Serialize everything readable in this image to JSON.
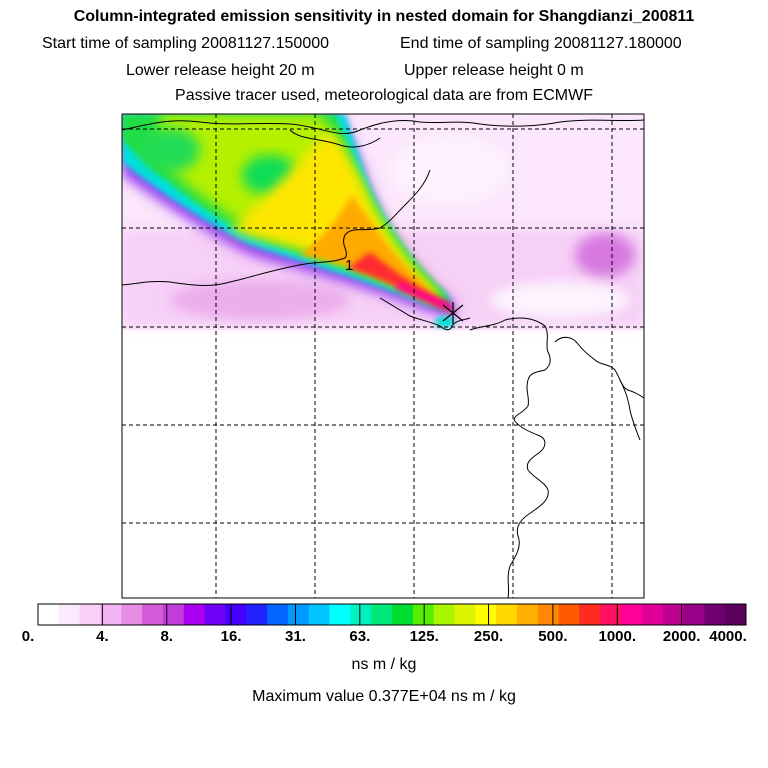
{
  "header": {
    "title": "Column-integrated emission sensitivity in nested domain for Shangdianzi_200811",
    "start_label": "Start time of sampling 20081127.150000",
    "end_label": "End time of sampling 20081127.180000",
    "lower_label": "Lower release height   20 m",
    "upper_label": "Upper release height    0 m",
    "subtitle": "Passive tracer used, meteorological data are from ECMWF"
  },
  "map": {
    "marker_label": "1",
    "receptor_symbol": "×"
  },
  "chart_data": {
    "type": "heatmap",
    "title": "Column-integrated emission sensitivity in nested domain for Shangdianzi_200811",
    "colorbar": {
      "tick_labels": [
        "0.",
        "4.",
        "8.",
        "16.",
        "31.",
        "63.",
        "125.",
        "250.",
        "500.",
        "1000.",
        "2000.",
        "4000."
      ],
      "tick_values": [
        0,
        4,
        8,
        16,
        31,
        63,
        125,
        250,
        500,
        1000,
        2000,
        4000
      ],
      "colors": [
        "#ffffff",
        "#fde9fd",
        "#f8d0f8",
        "#f2b4f2",
        "#e68ee6",
        "#d55bd8",
        "#c23cdc",
        "#a900f0",
        "#7000f8",
        "#4400ff",
        "#2222ff",
        "#0066ff",
        "#0099ff",
        "#00c4ff",
        "#00ffff",
        "#00f0c0",
        "#00e87a",
        "#00dd33",
        "#55ee00",
        "#aaf500",
        "#ddf400",
        "#ffff00",
        "#ffd800",
        "#ffb000",
        "#ff8800",
        "#ff5a00",
        "#ff2a20",
        "#ff1060",
        "#ff0099",
        "#e00099",
        "#c00090",
        "#990088",
        "#700070",
        "#5a005a"
      ],
      "units": "ns m / kg"
    },
    "max_value_text": "Maximum value  0.377E+04 ns m / kg",
    "max_value": 3770
  }
}
